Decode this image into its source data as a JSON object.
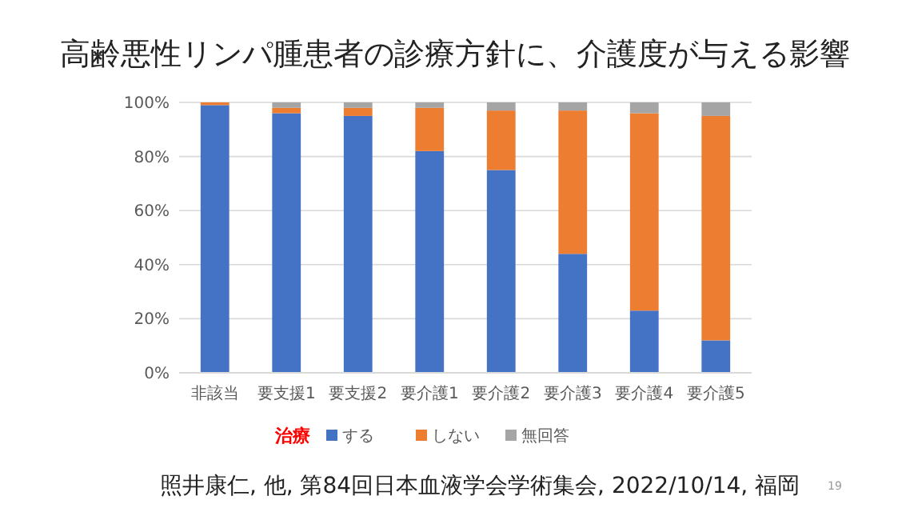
{
  "chart_data": {
    "type": "bar",
    "title": "高齢悪性リンパ腫患者の診療方針に、介護度が与える影響",
    "categories": [
      "非該当",
      "要支援1",
      "要支援2",
      "要介護1",
      "要介護2",
      "要介護3",
      "要介護4",
      "要介護5"
    ],
    "stacked": true,
    "legend_title": "治療",
    "legend": "bottom",
    "grid": "y",
    "ylim": [
      0,
      100
    ],
    "yticks": [
      {
        "value": 0,
        "label": "0%"
      },
      {
        "value": 20,
        "label": "20%"
      },
      {
        "value": 40,
        "label": "40%"
      },
      {
        "value": 60,
        "label": "60%"
      },
      {
        "value": 80,
        "label": "80%"
      },
      {
        "value": 100,
        "label": "100%"
      }
    ],
    "series": [
      {
        "name": "する",
        "color": "#4472c4",
        "values": [
          99,
          96,
          95,
          82,
          75,
          44,
          23,
          12
        ]
      },
      {
        "name": "しない",
        "color": "#ed7d31",
        "values": [
          1,
          2,
          3,
          16,
          22,
          53,
          73,
          83
        ]
      },
      {
        "name": "無回答",
        "color": "#a5a5a5",
        "values": [
          0,
          2,
          2,
          2,
          3,
          3,
          4,
          5
        ]
      }
    ],
    "annotations": [
      "照井康仁, 他, 第84回日本血液学会学術集会, 2022/10/14, 福岡",
      "19"
    ]
  }
}
